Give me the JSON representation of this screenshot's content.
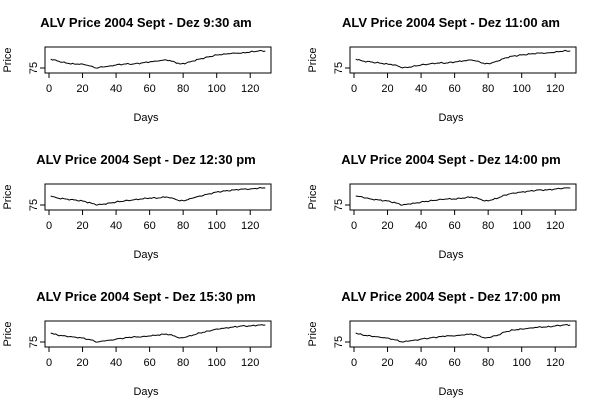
{
  "chart_data": [
    {
      "type": "line",
      "title": "ALV Price 2004 Sept - Dez 9:30 am",
      "xlabel": "Days",
      "ylabel": "Price",
      "xlim": [
        0,
        130
      ],
      "x_ticks": [
        0,
        20,
        40,
        60,
        80,
        100,
        120
      ],
      "y_ticks": [
        75
      ],
      "grid": false,
      "series": [
        {
          "points": [
            [
              1,
              84
            ],
            [
              5,
              82
            ],
            [
              10,
              80
            ],
            [
              15,
              79
            ],
            [
              20,
              79
            ],
            [
              25,
              77
            ],
            [
              28,
              75
            ],
            [
              32,
              76
            ],
            [
              36,
              77
            ],
            [
              40,
              78
            ],
            [
              45,
              79
            ],
            [
              50,
              79
            ],
            [
              55,
              80
            ],
            [
              60,
              81
            ],
            [
              65,
              82
            ],
            [
              70,
              83
            ],
            [
              75,
              81
            ],
            [
              78,
              79
            ],
            [
              82,
              80
            ],
            [
              86,
              82
            ],
            [
              90,
              84
            ],
            [
              95,
              86
            ],
            [
              100,
              88
            ],
            [
              105,
              89
            ],
            [
              110,
              90
            ],
            [
              115,
              90
            ],
            [
              120,
              91
            ],
            [
              125,
              92
            ],
            [
              129,
              92
            ]
          ]
        }
      ]
    },
    {
      "type": "line",
      "title": "ALV Price 2004 Sept - Dez 11:00 am",
      "xlabel": "Days",
      "ylabel": "Price",
      "xlim": [
        0,
        130
      ],
      "x_ticks": [
        0,
        20,
        40,
        60,
        80,
        100,
        120
      ],
      "y_ticks": [
        75
      ],
      "grid": false,
      "series": [
        {
          "points": [
            [
              1,
              84
            ],
            [
              5,
              82
            ],
            [
              10,
              81
            ],
            [
              15,
              80
            ],
            [
              20,
              79
            ],
            [
              25,
              78
            ],
            [
              29,
              75
            ],
            [
              33,
              76
            ],
            [
              37,
              77
            ],
            [
              40,
              78
            ],
            [
              45,
              79
            ],
            [
              50,
              80
            ],
            [
              55,
              80
            ],
            [
              60,
              81
            ],
            [
              65,
              82
            ],
            [
              70,
              83
            ],
            [
              75,
              81
            ],
            [
              78,
              79
            ],
            [
              82,
              80
            ],
            [
              86,
              82
            ],
            [
              90,
              85
            ],
            [
              95,
              87
            ],
            [
              100,
              88
            ],
            [
              105,
              89
            ],
            [
              110,
              90
            ],
            [
              115,
              90
            ],
            [
              120,
              91
            ],
            [
              125,
              92
            ],
            [
              129,
              92
            ]
          ]
        }
      ]
    },
    {
      "type": "line",
      "title": "ALV Price 2004 Sept - Dez 12:30 pm",
      "xlabel": "Days",
      "ylabel": "Price",
      "xlim": [
        0,
        130
      ],
      "x_ticks": [
        0,
        20,
        40,
        60,
        80,
        100,
        120
      ],
      "y_ticks": [
        75
      ],
      "grid": false,
      "series": [
        {
          "points": [
            [
              1,
              84
            ],
            [
              5,
              82
            ],
            [
              10,
              81
            ],
            [
              15,
              80
            ],
            [
              20,
              79
            ],
            [
              25,
              77
            ],
            [
              29,
              75
            ],
            [
              33,
              76
            ],
            [
              37,
              77
            ],
            [
              40,
              78
            ],
            [
              45,
              79
            ],
            [
              50,
              80
            ],
            [
              55,
              81
            ],
            [
              60,
              82
            ],
            [
              65,
              82
            ],
            [
              70,
              83
            ],
            [
              75,
              81
            ],
            [
              78,
              79
            ],
            [
              82,
              80
            ],
            [
              86,
              82
            ],
            [
              90,
              84
            ],
            [
              95,
              86
            ],
            [
              100,
              88
            ],
            [
              105,
              89
            ],
            [
              110,
              90
            ],
            [
              115,
              91
            ],
            [
              120,
              91
            ],
            [
              125,
              92
            ],
            [
              129,
              92
            ]
          ]
        }
      ]
    },
    {
      "type": "line",
      "title": "ALV Price 2004 Sept - Dez 14:00 pm",
      "xlabel": "Days",
      "ylabel": "Price",
      "xlim": [
        0,
        130
      ],
      "x_ticks": [
        0,
        20,
        40,
        60,
        80,
        100,
        120
      ],
      "y_ticks": [
        75
      ],
      "grid": false,
      "series": [
        {
          "points": [
            [
              1,
              84
            ],
            [
              5,
              83
            ],
            [
              10,
              81
            ],
            [
              15,
              80
            ],
            [
              20,
              79
            ],
            [
              25,
              77
            ],
            [
              29,
              75
            ],
            [
              33,
              76
            ],
            [
              37,
              77
            ],
            [
              40,
              78
            ],
            [
              45,
              79
            ],
            [
              50,
              80
            ],
            [
              55,
              81
            ],
            [
              60,
              81
            ],
            [
              65,
              82
            ],
            [
              70,
              83
            ],
            [
              75,
              81
            ],
            [
              78,
              79
            ],
            [
              82,
              80
            ],
            [
              86,
              82
            ],
            [
              90,
              85
            ],
            [
              95,
              87
            ],
            [
              100,
              88
            ],
            [
              105,
              89
            ],
            [
              110,
              90
            ],
            [
              115,
              90
            ],
            [
              120,
              91
            ],
            [
              125,
              92
            ],
            [
              129,
              92
            ]
          ]
        }
      ]
    },
    {
      "type": "line",
      "title": "ALV Price 2004 Sept - Dez 15:30 pm",
      "xlabel": "Days",
      "ylabel": "Price",
      "xlim": [
        0,
        130
      ],
      "x_ticks": [
        0,
        20,
        40,
        60,
        80,
        100,
        120
      ],
      "y_ticks": [
        75
      ],
      "grid": false,
      "series": [
        {
          "points": [
            [
              1,
              84
            ],
            [
              5,
              82
            ],
            [
              10,
              81
            ],
            [
              15,
              80
            ],
            [
              20,
              79
            ],
            [
              25,
              77
            ],
            [
              29,
              75
            ],
            [
              33,
              76
            ],
            [
              37,
              77
            ],
            [
              40,
              78
            ],
            [
              45,
              79
            ],
            [
              50,
              80
            ],
            [
              55,
              80
            ],
            [
              60,
              81
            ],
            [
              65,
              82
            ],
            [
              70,
              83
            ],
            [
              75,
              81
            ],
            [
              78,
              79
            ],
            [
              82,
              80
            ],
            [
              86,
              82
            ],
            [
              90,
              84
            ],
            [
              95,
              86
            ],
            [
              100,
              88
            ],
            [
              105,
              89
            ],
            [
              110,
              90
            ],
            [
              115,
              91
            ],
            [
              120,
              91
            ],
            [
              125,
              92
            ],
            [
              129,
              92
            ]
          ]
        }
      ]
    },
    {
      "type": "line",
      "title": "ALV Price 2004 Sept - Dez 17:00 pm",
      "xlabel": "Days",
      "ylabel": "Price",
      "xlim": [
        0,
        130
      ],
      "x_ticks": [
        0,
        20,
        40,
        60,
        80,
        100,
        120
      ],
      "y_ticks": [
        75
      ],
      "grid": false,
      "series": [
        {
          "points": [
            [
              1,
              84
            ],
            [
              5,
              82
            ],
            [
              10,
              81
            ],
            [
              15,
              80
            ],
            [
              20,
              79
            ],
            [
              25,
              77
            ],
            [
              29,
              75
            ],
            [
              33,
              76
            ],
            [
              37,
              77
            ],
            [
              40,
              78
            ],
            [
              45,
              79
            ],
            [
              50,
              80
            ],
            [
              55,
              81
            ],
            [
              60,
              81
            ],
            [
              65,
              82
            ],
            [
              70,
              83
            ],
            [
              75,
              81
            ],
            [
              78,
              79
            ],
            [
              82,
              80
            ],
            [
              86,
              82
            ],
            [
              90,
              85
            ],
            [
              95,
              87
            ],
            [
              100,
              88
            ],
            [
              105,
              89
            ],
            [
              110,
              90
            ],
            [
              115,
              90
            ],
            [
              120,
              91
            ],
            [
              125,
              92
            ],
            [
              129,
              92
            ]
          ]
        }
      ]
    }
  ]
}
